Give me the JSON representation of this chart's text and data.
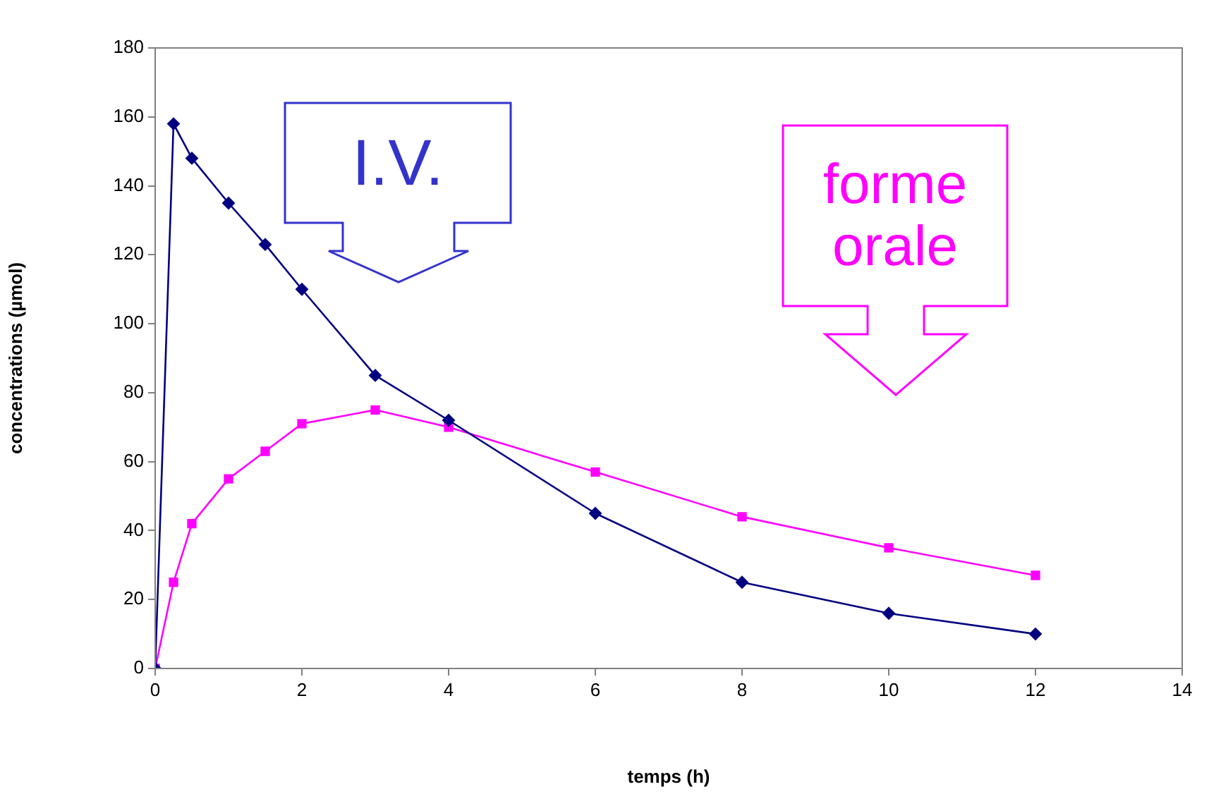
{
  "chart_data": {
    "type": "line",
    "xlabel": "temps (h)",
    "ylabel": "concentrations (µmol)",
    "xlim": [
      0,
      14
    ],
    "xticks": [
      0,
      2,
      4,
      6,
      8,
      10,
      12,
      14
    ],
    "ylim": [
      0,
      180
    ],
    "yticks": [
      0,
      20,
      40,
      60,
      80,
      100,
      120,
      140,
      160,
      180
    ],
    "grid": false,
    "legend": false,
    "line_style": "solid",
    "annotations": [
      "I.V.",
      "forme orale"
    ],
    "series": [
      {
        "color": "#000080",
        "marker": "diamond",
        "x": [
          0,
          0.25,
          0.5,
          1,
          1.5,
          2,
          3,
          4,
          6,
          8,
          10,
          12
        ],
        "values": [
          0,
          158,
          148,
          135,
          123,
          110,
          85,
          72,
          45,
          25,
          16,
          10
        ]
      },
      {
        "color": "#ff00ff",
        "marker": "square",
        "x": [
          0,
          0.25,
          0.5,
          1,
          1.5,
          2,
          3,
          4,
          6,
          8,
          10,
          12
        ],
        "values": [
          0,
          25,
          42,
          55,
          63,
          71,
          75,
          70,
          57,
          44,
          35,
          27
        ]
      }
    ]
  }
}
